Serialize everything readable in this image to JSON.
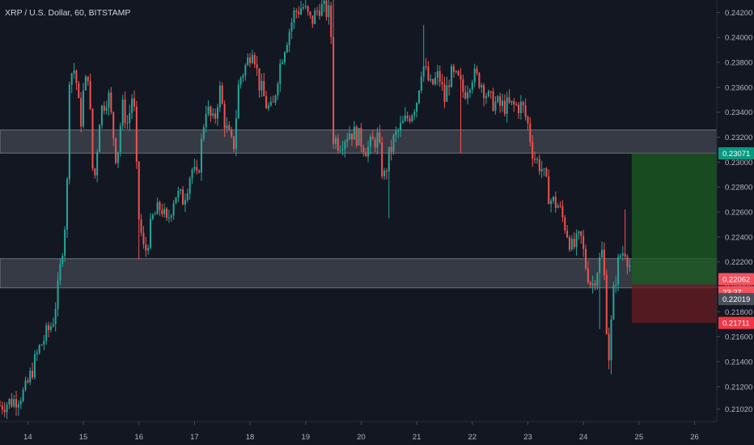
{
  "header": {
    "symbol_title": "XRP / U.S. Dollar, 60, BITSTAMP"
  },
  "colors": {
    "background": "#131722",
    "bull": "#26a69a",
    "bear": "#ef5350",
    "zone": "#9598a1",
    "target": "#1b5e20",
    "stop": "#6b1c22",
    "target_label": "#089981",
    "stop_label": "#f23645",
    "price_label": "#f7525f",
    "entry_label": "#4a4e59"
  },
  "chart_data": {
    "type": "candlestick",
    "title": "XRP / U.S. Dollar, 60, BITSTAMP",
    "x_tick_labels": [
      "14",
      "15",
      "16",
      "17",
      "18",
      "19",
      "20",
      "21",
      "22",
      "23",
      "24",
      "25",
      "26"
    ],
    "y_tick_labels": [
      "0.21020",
      "0.21200",
      "0.21400",
      "0.21600",
      "0.21800",
      "0.22000",
      "0.22200",
      "0.22400",
      "0.22600",
      "0.22800",
      "0.23000",
      "0.23200",
      "0.23400",
      "0.23600",
      "0.23800",
      "0.24000",
      "0.24200"
    ],
    "ylim": [
      0.2092,
      0.243
    ],
    "xlim": [
      13.5,
      26.4
    ],
    "grid": false,
    "price_labels": {
      "target": "0.23071",
      "last": "0.22062",
      "countdown": "23:27",
      "entry": "0.22019",
      "stop": "0.21711"
    },
    "zones": [
      {
        "low": 0.23072,
        "high": 0.23258
      },
      {
        "low": 0.21992,
        "high": 0.22226
      }
    ],
    "position": {
      "x_start": 24.87,
      "x_end": 26.4,
      "target": 0.23071,
      "entry": 0.22019,
      "stop": 0.21711
    },
    "path_anchors": [
      [
        13.5,
        0.2105
      ],
      [
        13.75,
        0.2109
      ],
      [
        13.95,
        0.2116
      ],
      [
        14.2,
        0.215
      ],
      [
        14.45,
        0.2172
      ],
      [
        14.55,
        0.22
      ],
      [
        14.7,
        0.2265
      ],
      [
        14.75,
        0.237
      ],
      [
        14.85,
        0.2375
      ],
      [
        14.95,
        0.233
      ],
      [
        15.0,
        0.2355
      ],
      [
        15.1,
        0.2375
      ],
      [
        15.15,
        0.23
      ],
      [
        15.2,
        0.2285
      ],
      [
        15.3,
        0.234
      ],
      [
        15.45,
        0.2355
      ],
      [
        15.6,
        0.23
      ],
      [
        15.7,
        0.2345
      ],
      [
        15.8,
        0.233
      ],
      [
        15.9,
        0.236
      ],
      [
        15.95,
        0.23
      ],
      [
        16.0,
        0.2255
      ],
      [
        16.1,
        0.2225
      ],
      [
        16.25,
        0.2255
      ],
      [
        16.4,
        0.2265
      ],
      [
        16.5,
        0.225
      ],
      [
        16.65,
        0.2275
      ],
      [
        16.8,
        0.227
      ],
      [
        16.95,
        0.2295
      ],
      [
        17.05,
        0.2285
      ],
      [
        17.1,
        0.2305
      ],
      [
        17.2,
        0.2345
      ],
      [
        17.35,
        0.233
      ],
      [
        17.45,
        0.236
      ],
      [
        17.55,
        0.233
      ],
      [
        17.7,
        0.231
      ],
      [
        17.8,
        0.2365
      ],
      [
        17.95,
        0.238
      ],
      [
        18.05,
        0.2395
      ],
      [
        18.15,
        0.2365
      ],
      [
        18.3,
        0.2345
      ],
      [
        18.4,
        0.234
      ],
      [
        18.5,
        0.237
      ],
      [
        18.6,
        0.239
      ],
      [
        18.7,
        0.2405
      ],
      [
        18.8,
        0.242
      ],
      [
        18.95,
        0.2425
      ],
      [
        19.1,
        0.2412
      ],
      [
        19.25,
        0.2425
      ],
      [
        19.45,
        0.2418
      ],
      [
        19.5,
        0.232
      ],
      [
        19.6,
        0.2315
      ],
      [
        19.8,
        0.2325
      ],
      [
        19.95,
        0.232
      ],
      [
        20.1,
        0.231
      ],
      [
        20.3,
        0.232
      ],
      [
        20.4,
        0.2285
      ],
      [
        20.5,
        0.2305
      ],
      [
        20.6,
        0.232
      ],
      [
        20.75,
        0.233
      ],
      [
        20.9,
        0.234
      ],
      [
        21.0,
        0.235
      ],
      [
        21.1,
        0.238
      ],
      [
        21.25,
        0.236
      ],
      [
        21.4,
        0.237
      ],
      [
        21.5,
        0.235
      ],
      [
        21.6,
        0.237
      ],
      [
        21.75,
        0.2365
      ],
      [
        21.85,
        0.2355
      ],
      [
        22.0,
        0.237
      ],
      [
        22.15,
        0.2365
      ],
      [
        22.3,
        0.235
      ],
      [
        22.5,
        0.2345
      ],
      [
        22.7,
        0.2345
      ],
      [
        22.9,
        0.2345
      ],
      [
        23.0,
        0.233
      ],
      [
        23.1,
        0.2305
      ],
      [
        23.25,
        0.2295
      ],
      [
        23.4,
        0.227
      ],
      [
        23.55,
        0.2265
      ],
      [
        23.7,
        0.2245
      ],
      [
        23.8,
        0.223
      ],
      [
        23.95,
        0.224
      ],
      [
        24.05,
        0.2215
      ],
      [
        24.15,
        0.22
      ],
      [
        24.25,
        0.2215
      ],
      [
        24.35,
        0.223
      ],
      [
        24.45,
        0.214
      ],
      [
        24.55,
        0.22
      ],
      [
        24.65,
        0.2225
      ],
      [
        24.75,
        0.223
      ],
      [
        24.85,
        0.2215
      ],
      [
        24.87,
        0.2206
      ]
    ],
    "spikes": [
      {
        "x": 19.5,
        "high": 0.243
      },
      {
        "x": 19.52,
        "low": 0.2283
      },
      {
        "x": 20.5,
        "low": 0.2255
      },
      {
        "x": 21.12,
        "high": 0.241
      },
      {
        "x": 21.8,
        "low": 0.2307
      },
      {
        "x": 24.3,
        "low": 0.2166
      },
      {
        "x": 24.5,
        "low": 0.213
      },
      {
        "x": 24.45,
        "low": 0.2134
      },
      {
        "x": 24.75,
        "high": 0.2262
      },
      {
        "x": 16.0,
        "low": 0.2222
      }
    ]
  }
}
